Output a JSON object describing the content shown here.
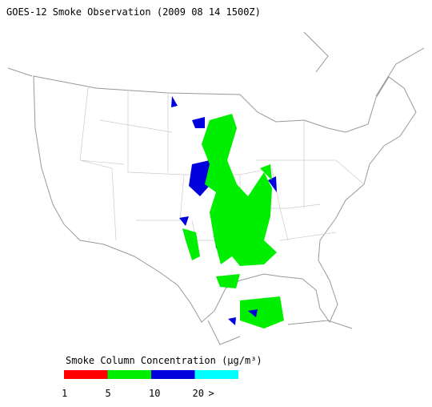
{
  "header": {
    "title": "GOES-12 Smoke Observation (2009 08 14  1500Z)"
  },
  "legend": {
    "title": "Smoke Column Concentration (µg/m³)",
    "colors": [
      "#ff0000",
      "#00ee00",
      "#0000dd",
      "#00ffff"
    ],
    "labels": [
      "1",
      "5",
      "10",
      "20",
      ">"
    ]
  }
}
